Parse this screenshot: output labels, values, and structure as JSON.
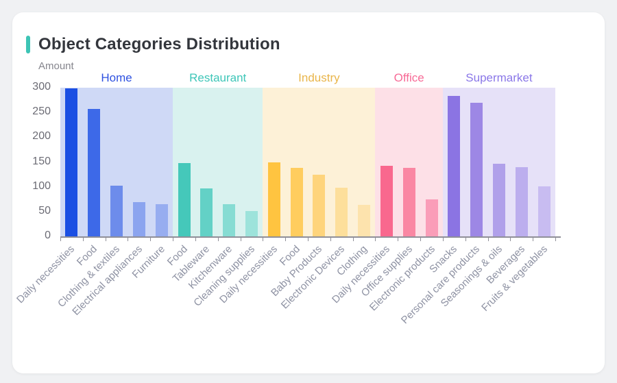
{
  "title": "Object Categories Distribution",
  "theme": {
    "accent_color": "#3dc4b5",
    "page_bg": "#f0f1f3",
    "card_bg": "#ffffff",
    "axis_color": "#8f8f98",
    "y_tick_label_color": "#6b6b74",
    "x_tick_label_color": "#8e92a3"
  },
  "chart_data": {
    "type": "bar",
    "title": "Object Categories Distribution",
    "xlabel": "",
    "ylabel": "Amount",
    "ylim": [
      0,
      300
    ],
    "yticks": [
      0,
      50,
      100,
      150,
      200,
      250,
      300
    ],
    "grid": false,
    "legend_position": "group-labels-above-bands",
    "groups": [
      {
        "name": "Home",
        "label_color": "#2e51e0",
        "band_color": "#cfd9f6",
        "categories": [
          "Daily necessities",
          "Food",
          "Clothing & textiles",
          "Electrical appliances",
          "Furniture"
        ],
        "values": [
          298,
          257,
          102,
          69,
          65
        ],
        "bar_colors": [
          "#1b4fe3",
          "#3d69e8",
          "#6d8ceb",
          "#8ba4ef",
          "#97adf0"
        ]
      },
      {
        "name": "Restaurant",
        "label_color": "#3ec6b8",
        "band_color": "#d9f2ef",
        "categories": [
          "Food",
          "Tableware",
          "Kitchenware",
          "Cleaning supplies"
        ],
        "values": [
          148,
          97,
          65,
          51
        ],
        "bar_colors": [
          "#45c8ba",
          "#63d1c6",
          "#86dcd3",
          "#9de3db"
        ]
      },
      {
        "name": "Industry",
        "label_color": "#e9b54a",
        "band_color": "#fdf1d7",
        "categories": [
          "Daily necessities",
          "Food",
          "Baby Products",
          "Electronic Devices",
          "Clothing"
        ],
        "values": [
          150,
          138,
          125,
          98,
          64
        ],
        "bar_colors": [
          "#ffc440",
          "#ffcd5e",
          "#fed47c",
          "#fddf9b",
          "#fde3ad"
        ]
      },
      {
        "name": "Office",
        "label_color": "#f76a96",
        "band_color": "#fde0e7",
        "categories": [
          "Daily necessities",
          "Office supplies",
          "Electronic products"
        ],
        "values": [
          142,
          138,
          75
        ],
        "bar_colors": [
          "#f9688e",
          "#fa87a3",
          "#fa9db8"
        ]
      },
      {
        "name": "Supermarket",
        "label_color": "#8a77e8",
        "band_color": "#e6e1f8",
        "categories": [
          "Snacks",
          "Personal care products",
          "Seasonings & oils",
          "Beverages",
          "Fruits & vegetables"
        ],
        "values": [
          283,
          270,
          147,
          140,
          101
        ],
        "bar_colors": [
          "#8b74e3",
          "#9d87e5",
          "#b0a0ea",
          "#bcaeee",
          "#c8bcf1"
        ]
      }
    ]
  }
}
